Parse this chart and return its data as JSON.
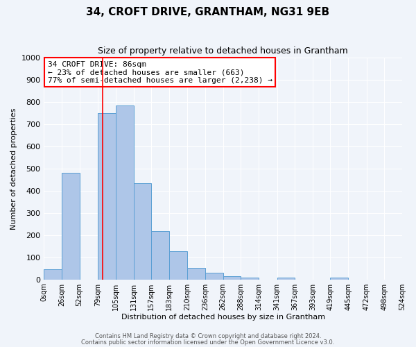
{
  "title": "34, CROFT DRIVE, GRANTHAM, NG31 9EB",
  "subtitle": "Size of property relative to detached houses in Grantham",
  "xlabel": "Distribution of detached houses by size in Grantham",
  "ylabel": "Number of detached properties",
  "bin_edges": [
    0,
    26,
    52,
    79,
    105,
    131,
    157,
    183,
    210,
    236,
    262,
    288,
    314,
    341,
    367,
    393,
    419,
    445,
    472,
    498,
    524
  ],
  "bar_heights": [
    45,
    480,
    0,
    750,
    785,
    435,
    218,
    128,
    52,
    30,
    15,
    10,
    0,
    8,
    0,
    0,
    10,
    0,
    0,
    0
  ],
  "bar_color": "#aec6e8",
  "bar_edge_color": "#5a9fd4",
  "property_line_x": 86,
  "property_line_color": "red",
  "ylim": [
    0,
    1000
  ],
  "yticks": [
    0,
    100,
    200,
    300,
    400,
    500,
    600,
    700,
    800,
    900,
    1000
  ],
  "xtick_labels": [
    "0sqm",
    "26sqm",
    "52sqm",
    "79sqm",
    "105sqm",
    "131sqm",
    "157sqm",
    "183sqm",
    "210sqm",
    "236sqm",
    "262sqm",
    "288sqm",
    "314sqm",
    "341sqm",
    "367sqm",
    "393sqm",
    "419sqm",
    "445sqm",
    "472sqm",
    "498sqm",
    "524sqm"
  ],
  "annotation_title": "34 CROFT DRIVE: 86sqm",
  "annotation_line1": "← 23% of detached houses are smaller (663)",
  "annotation_line2": "77% of semi-detached houses are larger (2,238) →",
  "annotation_box_color": "white",
  "annotation_box_edge": "red",
  "bg_color": "#f0f4fa",
  "grid_color": "white",
  "footer_line1": "Contains HM Land Registry data © Crown copyright and database right 2024.",
  "footer_line2": "Contains public sector information licensed under the Open Government Licence v3.0."
}
